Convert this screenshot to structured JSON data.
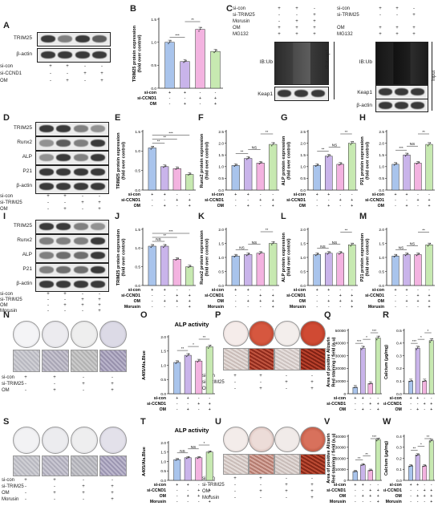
{
  "panels": [
    "A",
    "B",
    "C",
    "D",
    "E",
    "F",
    "G",
    "H",
    "I",
    "J",
    "K",
    "L",
    "M",
    "N",
    "O",
    "P",
    "Q",
    "R",
    "S",
    "T",
    "U",
    "V",
    "W"
  ],
  "blotA": {
    "rows": [
      "TRIM25",
      "β-actin"
    ],
    "conditions": [
      {
        "label": "si-con",
        "signs": [
          "+",
          "+",
          "-",
          "-"
        ]
      },
      {
        "label": "si-CCND1",
        "signs": [
          "-",
          "-",
          "+",
          "+"
        ]
      },
      {
        "label": "OM",
        "signs": [
          "-",
          "+",
          "-",
          "+"
        ]
      }
    ]
  },
  "blotC": {
    "conditions_left": [
      {
        "label": "si-con",
        "signs": [
          "+",
          "+",
          "-"
        ]
      },
      {
        "label": "si-TRIM25",
        "signs": [
          "-",
          "-",
          "+"
        ]
      },
      {
        "label": "Morusin",
        "signs": [
          "-",
          "+",
          "+"
        ]
      },
      {
        "label": "OM",
        "signs": [
          "+",
          "+",
          "+"
        ]
      },
      {
        "label": "MG132",
        "signs": [
          "+",
          "+",
          "+"
        ]
      }
    ],
    "conditions_right": [
      {
        "label": "si-con",
        "signs": [
          "+",
          "+",
          "-"
        ]
      },
      {
        "label": "si-TRIM25",
        "signs": [
          "-",
          "-",
          "+"
        ]
      },
      {
        "label": "OM",
        "signs": [
          "+",
          "+",
          "+"
        ]
      },
      {
        "label": "MG132",
        "signs": [
          "+",
          "+",
          "+"
        ]
      }
    ],
    "ip_label": "IB:Ub",
    "ip_keap": "Keap1",
    "ip_side": "IP:Keap1",
    "input_ib": "IB:Ub",
    "input_keap": "Keap1",
    "input_actin": "β-actin",
    "input_side": "Input"
  },
  "blotD": {
    "rows": [
      "TRIM25",
      "Runx2",
      "ALP",
      "P21",
      "β-actin"
    ],
    "conditions": [
      {
        "label": "si-con",
        "signs": [
          "+",
          "+",
          "-",
          "-"
        ]
      },
      {
        "label": "si-TRIM25",
        "signs": [
          "-",
          "-",
          "+",
          "+"
        ]
      },
      {
        "label": "OM",
        "signs": [
          "-",
          "+",
          "-",
          "+"
        ]
      }
    ]
  },
  "blotI": {
    "rows": [
      "TRIM25",
      "Runx2",
      "ALP",
      "P21",
      "β-actin"
    ],
    "conditions": [
      {
        "label": "si-con",
        "signs": [
          "+",
          "+",
          "-",
          "-"
        ]
      },
      {
        "label": "si-TRIM25",
        "signs": [
          "-",
          "-",
          "+",
          "+"
        ]
      },
      {
        "label": "OM",
        "signs": [
          "-",
          "+",
          "+",
          "+"
        ]
      },
      {
        "label": "Morusin",
        "signs": [
          "-",
          "-",
          "-",
          "+"
        ]
      }
    ]
  },
  "bar_conditions_ccnd1": [
    {
      "label": "si-con",
      "signs": [
        "+",
        "+",
        "-",
        "-"
      ]
    },
    {
      "label": "si-CCND1",
      "signs": [
        "-",
        "-",
        "+",
        "+"
      ]
    },
    {
      "label": "OM",
      "signs": [
        "-",
        "+",
        "-",
        "+"
      ]
    }
  ],
  "bar_conditions_ccnd1_morusin": [
    {
      "label": "si-con",
      "signs": [
        "+",
        "+",
        "-",
        "-"
      ]
    },
    {
      "label": "si-CCND1",
      "signs": [
        "-",
        "-",
        "+",
        "+"
      ]
    },
    {
      "label": "OM",
      "signs": [
        "-",
        "+",
        "+",
        "+"
      ]
    },
    {
      "label": "Morusin",
      "signs": [
        "-",
        "-",
        "-",
        "+"
      ]
    }
  ],
  "stain_conditions_N": [
    {
      "label": "si-con",
      "signs": [
        "+",
        "+",
        "-",
        "-"
      ]
    },
    {
      "label": "si-TRIM25",
      "signs": [
        "-",
        "-",
        "+",
        "+"
      ]
    },
    {
      "label": "OM",
      "signs": [
        "-",
        "+",
        "-",
        "+"
      ]
    }
  ],
  "stain_conditions_S": [
    {
      "label": "si-con",
      "signs": [
        "+",
        "+",
        "-",
        "-"
      ]
    },
    {
      "label": "si-TRIM25",
      "signs": [
        "-",
        "-",
        "+",
        "+"
      ]
    },
    {
      "label": "OM",
      "signs": [
        "-",
        "+",
        "+",
        "+"
      ]
    },
    {
      "label": "Morusin",
      "signs": [
        "-",
        "-",
        "-",
        "+"
      ]
    }
  ],
  "colors": {
    "c1": "#a9c4ec",
    "c2": "#c9b4ea",
    "c3": "#f3b3e0",
    "c4": "#c7e9b1"
  },
  "chart_data": [
    {
      "id": "B",
      "type": "bar",
      "ylabel": "TRIM25 protein expression\n(fold over control)",
      "ylim": [
        0,
        1.5
      ],
      "yticks": [
        "0.0",
        "0.5",
        "1.0",
        "1.5"
      ],
      "values": [
        1.0,
        0.58,
        1.28,
        0.8
      ],
      "sig": [
        {
          "a": 0,
          "b": 1,
          "t": "***"
        },
        {
          "a": 1,
          "b": 2,
          "t": "**"
        }
      ]
    },
    {
      "id": "E",
      "type": "bar",
      "ylabel": "TRIM25 protein expression\n(fold over control)",
      "ylim": [
        0,
        1.5
      ],
      "yticks": [
        "0.0",
        "0.5",
        "1.0",
        "1.5"
      ],
      "values": [
        1.08,
        0.6,
        0.55,
        0.4
      ],
      "sig": [
        {
          "a": 0,
          "b": 1,
          "t": "**"
        },
        {
          "a": 0,
          "b": 2,
          "t": "**"
        },
        {
          "a": 0,
          "b": 3,
          "t": "***"
        }
      ]
    },
    {
      "id": "F",
      "type": "bar",
      "ylabel": "Runx2 protein expression\n(fold over control)",
      "ylim": [
        0,
        2.5
      ],
      "yticks": [
        "0.0",
        "0.5",
        "1.0",
        "1.5",
        "2.0",
        "2.5"
      ],
      "values": [
        1.05,
        1.35,
        1.15,
        1.95
      ],
      "sig": [
        {
          "a": 0,
          "b": 1,
          "t": "**"
        },
        {
          "a": 1,
          "b": 2,
          "t": "NS"
        },
        {
          "a": 2,
          "b": 3,
          "t": "**"
        }
      ]
    },
    {
      "id": "G",
      "type": "bar",
      "ylabel": "ALP protein expression\n(fold over control)",
      "ylim": [
        0,
        2.5
      ],
      "yticks": [
        "0.0",
        "0.5",
        "1.0",
        "1.5",
        "2.0",
        "2.5"
      ],
      "values": [
        1.05,
        1.45,
        1.1,
        2.0
      ],
      "sig": [
        {
          "a": 0,
          "b": 1,
          "t": "**"
        },
        {
          "a": 1,
          "b": 2,
          "t": "NS"
        },
        {
          "a": 2,
          "b": 3,
          "t": "**"
        }
      ]
    },
    {
      "id": "H",
      "type": "bar",
      "ylabel": "P21 protein expression\n(fold over control)",
      "ylim": [
        0,
        2.5
      ],
      "yticks": [
        "0.0",
        "0.5",
        "1.0",
        "1.5",
        "2.0",
        "2.5"
      ],
      "values": [
        1.1,
        1.5,
        1.15,
        1.95
      ],
      "sig": [
        {
          "a": 0,
          "b": 1,
          "t": "***"
        },
        {
          "a": 1,
          "b": 2,
          "t": "NS"
        },
        {
          "a": 2,
          "b": 3,
          "t": "**"
        }
      ]
    },
    {
      "id": "J",
      "type": "bar",
      "ylabel": "TRIM25 protein expression\n(fold over control)",
      "ylim": [
        0,
        1.5
      ],
      "yticks": [
        "0.0",
        "0.5",
        "1.0",
        "1.5"
      ],
      "values": [
        1.05,
        1.05,
        0.7,
        0.5
      ],
      "sig": [
        {
          "a": 0,
          "b": 1,
          "t": "NS"
        },
        {
          "a": 0,
          "b": 2,
          "t": "**"
        },
        {
          "a": 0,
          "b": 3,
          "t": "***"
        }
      ]
    },
    {
      "id": "K",
      "type": "bar",
      "ylabel": "Runx2 protein expression\n(fold over control)",
      "ylim": [
        0,
        2.0
      ],
      "yticks": [
        "0.0",
        "0.5",
        "1.0",
        "1.5",
        "2.0"
      ],
      "values": [
        1.05,
        1.1,
        1.15,
        1.5
      ],
      "sig": [
        {
          "a": 0,
          "b": 1,
          "t": "NS"
        },
        {
          "a": 1,
          "b": 2,
          "t": "NS"
        },
        {
          "a": 2,
          "b": 3,
          "t": "**"
        }
      ]
    },
    {
      "id": "L",
      "type": "bar",
      "ylabel": "ALP protein expression\n(fold over control)",
      "ylim": [
        0,
        2.0
      ],
      "yticks": [
        "0.0",
        "0.5",
        "1.0",
        "1.5",
        "2.0"
      ],
      "values": [
        1.1,
        1.15,
        1.15,
        1.45
      ],
      "sig": [
        {
          "a": 0,
          "b": 1,
          "t": "NS"
        },
        {
          "a": 1,
          "b": 2,
          "t": "NS"
        },
        {
          "a": 2,
          "b": 3,
          "t": "**"
        }
      ]
    },
    {
      "id": "M",
      "type": "bar",
      "ylabel": "P21 protein expression\n(fold over control)",
      "ylim": [
        0,
        2.0
      ],
      "yticks": [
        "0.0",
        "0.5",
        "1.0",
        "1.5",
        "2.0"
      ],
      "values": [
        1.05,
        1.1,
        1.1,
        1.45
      ],
      "sig": [
        {
          "a": 0,
          "b": 1,
          "t": "NS"
        },
        {
          "a": 1,
          "b": 2,
          "t": "NS"
        },
        {
          "a": 2,
          "b": 3,
          "t": "**"
        }
      ]
    },
    {
      "id": "O",
      "type": "bar",
      "title": "ALP activity",
      "ylabel": "A405/Ala.Blue",
      "ylim": [
        0,
        2.0
      ],
      "yticks": [
        "0.0",
        "0.5",
        "1.0",
        "1.5",
        "2.0"
      ],
      "values": [
        1.1,
        1.35,
        1.15,
        1.65
      ],
      "sig": [
        {
          "a": 0,
          "b": 1,
          "t": "**"
        },
        {
          "a": 1,
          "b": 2,
          "t": "*"
        },
        {
          "a": 2,
          "b": 3,
          "t": "**"
        }
      ]
    },
    {
      "id": "Q",
      "type": "bar",
      "ylabel": "Area of positive Alizarin\nRed staining / field (a.u)",
      "ylim": [
        0,
        50000
      ],
      "yticks": [
        "0",
        "10000",
        "20000",
        "30000",
        "40000",
        "50000"
      ],
      "values": [
        5000,
        36000,
        8000,
        44000
      ],
      "sig": [
        {
          "a": 0,
          "b": 1,
          "t": "***"
        },
        {
          "a": 1,
          "b": 2,
          "t": "*"
        },
        {
          "a": 2,
          "b": 3,
          "t": "***"
        }
      ]
    },
    {
      "id": "R",
      "type": "bar",
      "ylabel": "Calcium (μg/mg)",
      "ylim": [
        0,
        0.5
      ],
      "yticks": [
        "0.0",
        "0.1",
        "0.2",
        "0.3",
        "0.4",
        "0.5"
      ],
      "values": [
        0.1,
        0.36,
        0.1,
        0.42
      ],
      "sig": [
        {
          "a": 0,
          "b": 1,
          "t": "***"
        },
        {
          "a": 1,
          "b": 2,
          "t": "*"
        },
        {
          "a": 2,
          "b": 3,
          "t": "*"
        }
      ]
    },
    {
      "id": "T",
      "type": "bar",
      "title": "ALP activity",
      "ylabel": "A405/Ala.Blue",
      "ylim": [
        0,
        2.0
      ],
      "yticks": [
        "0.0",
        "0.5",
        "1.0",
        "1.5",
        "2.0"
      ],
      "values": [
        1.1,
        1.2,
        1.2,
        1.5
      ],
      "sig": [
        {
          "a": 0,
          "b": 1,
          "t": "NS"
        },
        {
          "a": 1,
          "b": 2,
          "t": "NS"
        },
        {
          "a": 2,
          "b": 3,
          "t": "*"
        }
      ]
    },
    {
      "id": "V",
      "type": "bar",
      "ylabel": "Area of positive Alizarin\nRed staining / field (a.u)",
      "ylim": [
        0,
        40000
      ],
      "yticks": [
        "0",
        "10000",
        "20000",
        "30000",
        "40000"
      ],
      "values": [
        8000,
        14000,
        9000,
        37000
      ],
      "sig": [
        {
          "a": 0,
          "b": 1,
          "t": "**"
        },
        {
          "a": 1,
          "b": 2,
          "t": "**"
        },
        {
          "a": 2,
          "b": 3,
          "t": "***"
        }
      ]
    },
    {
      "id": "W",
      "type": "bar",
      "ylabel": "Calcium (μg/mg)",
      "ylim": [
        0,
        0.4
      ],
      "yticks": [
        "0.0",
        "0.1",
        "0.2",
        "0.3",
        "0.4"
      ],
      "values": [
        0.13,
        0.23,
        0.13,
        0.36
      ],
      "sig": [
        {
          "a": 0,
          "b": 1,
          "t": "**"
        },
        {
          "a": 1,
          "b": 2,
          "t": "*"
        },
        {
          "a": 2,
          "b": 3,
          "t": "**"
        }
      ]
    }
  ]
}
